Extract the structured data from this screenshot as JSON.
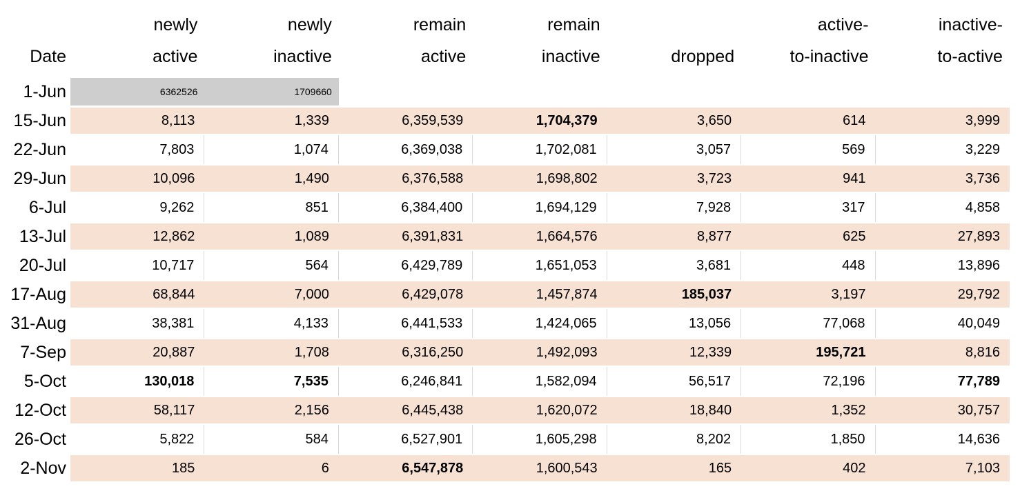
{
  "colors": {
    "stripe_fill": "#f7e1d3",
    "gray_fill": "#cecece",
    "gridline": "#d9d9d9",
    "text": "#000000",
    "background": "#ffffff"
  },
  "table": {
    "columns": [
      {
        "id": "date",
        "lines": [
          "",
          "Date"
        ]
      },
      {
        "id": "newly-active",
        "lines": [
          "newly",
          "active"
        ]
      },
      {
        "id": "newly-inactive",
        "lines": [
          "newly",
          "inactive"
        ]
      },
      {
        "id": "remain-active",
        "lines": [
          "remain",
          "active"
        ]
      },
      {
        "id": "remain-inactive",
        "lines": [
          "remain",
          "inactive"
        ]
      },
      {
        "id": "dropped",
        "lines": [
          "",
          "dropped"
        ]
      },
      {
        "id": "active-to-inactive",
        "lines": [
          "active-",
          "to-inactive"
        ]
      },
      {
        "id": "inactive-to-active",
        "lines": [
          "inactive-",
          "to-active"
        ]
      }
    ],
    "rows": [
      {
        "date": "1-Jun",
        "variant": "grayrow",
        "cells": [
          "6362526",
          "1709660",
          "",
          "",
          "",
          "",
          ""
        ],
        "bold": []
      },
      {
        "date": "15-Jun",
        "variant": "stripe",
        "cells": [
          "8,113",
          "1,339",
          "6,359,539",
          "1,704,379",
          "3,650",
          "614",
          "3,999"
        ],
        "bold": [
          3
        ]
      },
      {
        "date": "22-Jun",
        "variant": "plain",
        "cells": [
          "7,803",
          "1,074",
          "6,369,038",
          "1,702,081",
          "3,057",
          "569",
          "3,229"
        ],
        "bold": []
      },
      {
        "date": "29-Jun",
        "variant": "stripe",
        "cells": [
          "10,096",
          "1,490",
          "6,376,588",
          "1,698,802",
          "3,723",
          "941",
          "3,736"
        ],
        "bold": []
      },
      {
        "date": "6-Jul",
        "variant": "plain",
        "cells": [
          "9,262",
          "851",
          "6,384,400",
          "1,694,129",
          "7,928",
          "317",
          "4,858"
        ],
        "bold": []
      },
      {
        "date": "13-Jul",
        "variant": "stripe",
        "cells": [
          "12,862",
          "1,089",
          "6,391,831",
          "1,664,576",
          "8,877",
          "625",
          "27,893"
        ],
        "bold": []
      },
      {
        "date": "20-Jul",
        "variant": "plain",
        "cells": [
          "10,717",
          "564",
          "6,429,789",
          "1,651,053",
          "3,681",
          "448",
          "13,896"
        ],
        "bold": []
      },
      {
        "date": "17-Aug",
        "variant": "stripe",
        "cells": [
          "68,844",
          "7,000",
          "6,429,078",
          "1,457,874",
          "185,037",
          "3,197",
          "29,792"
        ],
        "bold": [
          4
        ]
      },
      {
        "date": "31-Aug",
        "variant": "plain",
        "cells": [
          "38,381",
          "4,133",
          "6,441,533",
          "1,424,065",
          "13,056",
          "77,068",
          "40,049"
        ],
        "bold": []
      },
      {
        "date": "7-Sep",
        "variant": "stripe",
        "cells": [
          "20,887",
          "1,708",
          "6,316,250",
          "1,492,093",
          "12,339",
          "195,721",
          "8,816"
        ],
        "bold": [
          5
        ]
      },
      {
        "date": "5-Oct",
        "variant": "plain",
        "cells": [
          "130,018",
          "7,535",
          "6,246,841",
          "1,582,094",
          "56,517",
          "72,196",
          "77,789"
        ],
        "bold": [
          0,
          1,
          6
        ]
      },
      {
        "date": "12-Oct",
        "variant": "stripe",
        "cells": [
          "58,117",
          "2,156",
          "6,445,438",
          "1,620,072",
          "18,840",
          "1,352",
          "30,757"
        ],
        "bold": []
      },
      {
        "date": "26-Oct",
        "variant": "plain",
        "cells": [
          "5,822",
          "584",
          "6,527,901",
          "1,605,298",
          "8,202",
          "1,850",
          "14,636"
        ],
        "bold": []
      },
      {
        "date": "2-Nov",
        "variant": "stripe",
        "cells": [
          "185",
          "6",
          "6,547,878",
          "1,600,543",
          "165",
          "402",
          "7,103"
        ],
        "bold": [
          2
        ]
      }
    ]
  }
}
